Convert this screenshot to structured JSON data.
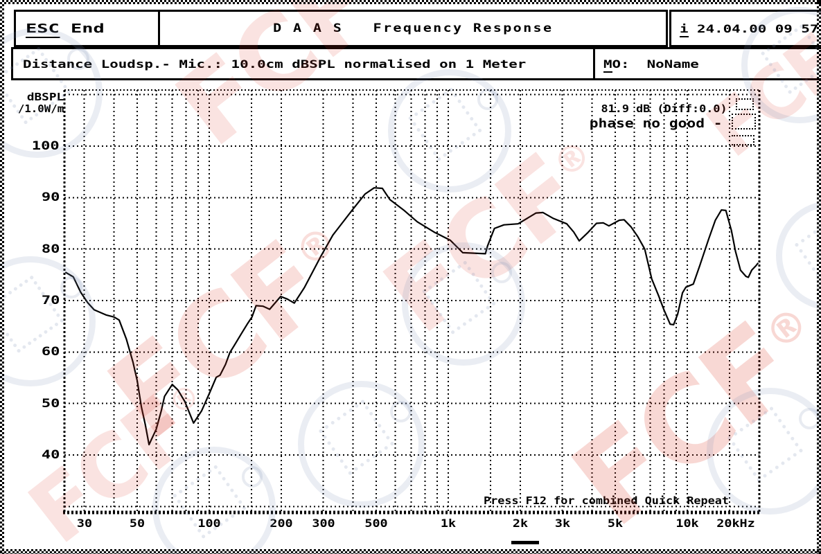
{
  "header": {
    "esc_key": "ESC",
    "esc_label": " End",
    "title": "D A A S   Frequency Response",
    "info_key": "i",
    "info_datetime": " 24.04.00 09 57"
  },
  "subheader": {
    "description": "Distance Loudsp.- Mic.: 10.0cm dBSPL normalised on 1 Meter",
    "mo_key_u": "M",
    "mo_key_rest": "O:",
    "mo_value": "  NoName"
  },
  "overlay": {
    "level_readout": "81.9 dB (Diff:0.0)",
    "phase_status": "phase no good -",
    "hint": "Press F12 for combined Quick Repeat"
  },
  "watermark": {
    "text": "FCF",
    "reg": "®"
  },
  "chart_data": {
    "type": "line",
    "title": "DAAS Frequency Response",
    "ylabel_line1": "dBSPL",
    "ylabel_line2": "/1.0W/m",
    "x_unit": "Hz",
    "x_scale": "log",
    "x_range_hz": [
      25,
      20000
    ],
    "y_range_db": [
      29,
      111
    ],
    "grid": "dotted",
    "legend_position": "top-right",
    "y_ticks": [
      100,
      90,
      80,
      70,
      60,
      50,
      40
    ],
    "x_ticks": [
      {
        "label": "30",
        "hz": 30
      },
      {
        "label": "50",
        "hz": 50
      },
      {
        "label": "100",
        "hz": 100
      },
      {
        "label": "200",
        "hz": 200
      },
      {
        "label": "300",
        "hz": 300
      },
      {
        "label": "500",
        "hz": 500
      },
      {
        "label": "1k",
        "hz": 1000
      },
      {
        "label": "2k",
        "hz": 2000
      },
      {
        "label": "3k",
        "hz": 3000
      },
      {
        "label": "5k",
        "hz": 5000
      },
      {
        "label": "10k",
        "hz": 10000
      },
      {
        "label": "20kHz",
        "hz": 20000
      }
    ],
    "grid_freqs_hz": [
      30,
      40,
      50,
      60,
      70,
      80,
      90,
      100,
      150,
      200,
      300,
      400,
      500,
      600,
      700,
      800,
      900,
      1000,
      1500,
      2000,
      3000,
      4000,
      5000,
      6000,
      7000,
      8000,
      9000,
      10000,
      15000
    ],
    "grid_levels_db": [
      110,
      100,
      90,
      80,
      70,
      60,
      50,
      40,
      30
    ],
    "series": [
      {
        "name": "SPL",
        "points": [
          [
            25,
            75.5
          ],
          [
            27,
            74.6
          ],
          [
            29,
            71.6
          ],
          [
            31,
            69.6
          ],
          [
            33,
            68.2
          ],
          [
            37,
            67.2
          ],
          [
            40,
            66.8
          ],
          [
            42,
            66.2
          ],
          [
            45,
            62.5
          ],
          [
            48,
            58.0
          ],
          [
            50,
            54.4
          ],
          [
            52,
            49.4
          ],
          [
            54,
            45.9
          ],
          [
            56,
            42.0
          ],
          [
            60,
            45.0
          ],
          [
            63,
            48.6
          ],
          [
            65,
            51.4
          ],
          [
            70,
            53.7
          ],
          [
            74,
            52.6
          ],
          [
            79,
            50.4
          ],
          [
            86,
            46.2
          ],
          [
            93,
            48.6
          ],
          [
            100,
            51.9
          ],
          [
            107,
            55.1
          ],
          [
            111,
            55.5
          ],
          [
            117,
            57.6
          ],
          [
            122,
            59.9
          ],
          [
            127,
            61.2
          ],
          [
            136,
            63.5
          ],
          [
            145,
            65.6
          ],
          [
            151,
            66.8
          ],
          [
            157,
            69.0
          ],
          [
            168,
            68.9
          ],
          [
            179,
            68.3
          ],
          [
            199,
            70.8
          ],
          [
            212,
            70.3
          ],
          [
            227,
            69.5
          ],
          [
            250,
            72.5
          ],
          [
            293,
            78.6
          ],
          [
            329,
            82.7
          ],
          [
            351,
            84.4
          ],
          [
            400,
            87.8
          ],
          [
            449,
            90.7
          ],
          [
            490,
            91.9
          ],
          [
            530,
            91.8
          ],
          [
            570,
            89.6
          ],
          [
            650,
            87.6
          ],
          [
            742,
            85.3
          ],
          [
            872,
            83.3
          ],
          [
            1020,
            81.7
          ],
          [
            1150,
            79.3
          ],
          [
            1430,
            79.1
          ],
          [
            1460,
            80.6
          ],
          [
            1560,
            84.0
          ],
          [
            1710,
            84.7
          ],
          [
            1960,
            84.9
          ],
          [
            2330,
            87.0
          ],
          [
            2490,
            87.1
          ],
          [
            2740,
            86.0
          ],
          [
            3130,
            84.9
          ],
          [
            3350,
            83.3
          ],
          [
            3530,
            81.6
          ],
          [
            3820,
            83.1
          ],
          [
            4170,
            85.0
          ],
          [
            4450,
            85.1
          ],
          [
            4700,
            84.5
          ],
          [
            5200,
            85.6
          ],
          [
            5440,
            85.7
          ],
          [
            5820,
            84.3
          ],
          [
            6210,
            82.4
          ],
          [
            6640,
            80.0
          ],
          [
            7100,
            74.2
          ],
          [
            7590,
            70.9
          ],
          [
            8000,
            68.1
          ],
          [
            8480,
            65.4
          ],
          [
            8770,
            65.3
          ],
          [
            9120,
            67.4
          ],
          [
            9550,
            71.5
          ],
          [
            9870,
            72.6
          ],
          [
            10600,
            73.2
          ],
          [
            11300,
            76.9
          ],
          [
            12300,
            82.0
          ],
          [
            13100,
            85.6
          ],
          [
            13900,
            87.6
          ],
          [
            14500,
            87.5
          ],
          [
            15300,
            83.6
          ],
          [
            15900,
            79.6
          ],
          [
            16700,
            75.9
          ],
          [
            17600,
            74.7
          ],
          [
            18000,
            74.5
          ],
          [
            18600,
            75.9
          ],
          [
            19400,
            76.8
          ],
          [
            19800,
            77.3
          ]
        ]
      }
    ]
  }
}
